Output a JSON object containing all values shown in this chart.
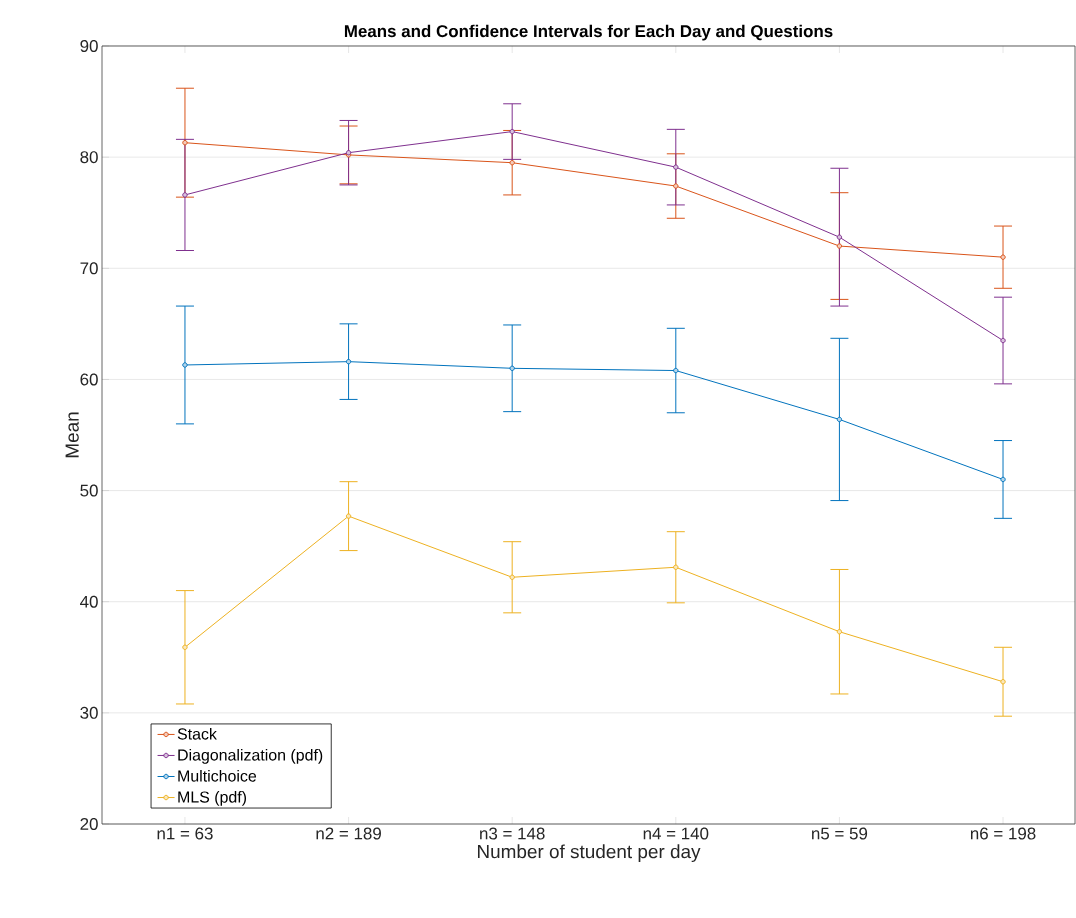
{
  "chart_data": {
    "type": "line",
    "title": "Means and Confidence Intervals for Each Day and Questions",
    "xlabel": "Number of student per day",
    "ylabel": "Mean",
    "categories": [
      "n1 =  63",
      "n2 = 189",
      "n3 = 148",
      "n4 = 140",
      "n5 =  59",
      "n6 = 198"
    ],
    "series": [
      {
        "name": "Stack",
        "color": "#D95319",
        "values": [
          81.3,
          80.2,
          79.5,
          77.4,
          72.0,
          71.0
        ],
        "errors": [
          4.9,
          2.6,
          2.9,
          2.9,
          4.8,
          2.8
        ]
      },
      {
        "name": "Diagonalization (pdf)",
        "color": "#7E2F8E",
        "values": [
          76.6,
          80.4,
          82.3,
          79.1,
          72.8,
          63.5
        ],
        "errors": [
          5.0,
          2.9,
          2.5,
          3.4,
          6.2,
          3.9
        ]
      },
      {
        "name": "Multichoice",
        "color": "#0072BD",
        "values": [
          61.3,
          61.6,
          61.0,
          60.8,
          56.4,
          51.0
        ],
        "errors": [
          5.3,
          3.4,
          3.9,
          3.8,
          7.3,
          3.5
        ]
      },
      {
        "name": "MLS (pdf)",
        "color": "#EDB120",
        "values": [
          35.9,
          47.7,
          42.2,
          43.1,
          37.3,
          32.8
        ],
        "errors": [
          5.1,
          3.1,
          3.2,
          3.2,
          5.6,
          3.1
        ]
      }
    ],
    "ylim": [
      20,
      90
    ],
    "yticks": [
      20,
      30,
      40,
      50,
      60,
      70,
      80,
      90
    ],
    "grid": "y",
    "legend": "bottom left",
    "marker": "circle",
    "line_style": "solid"
  }
}
